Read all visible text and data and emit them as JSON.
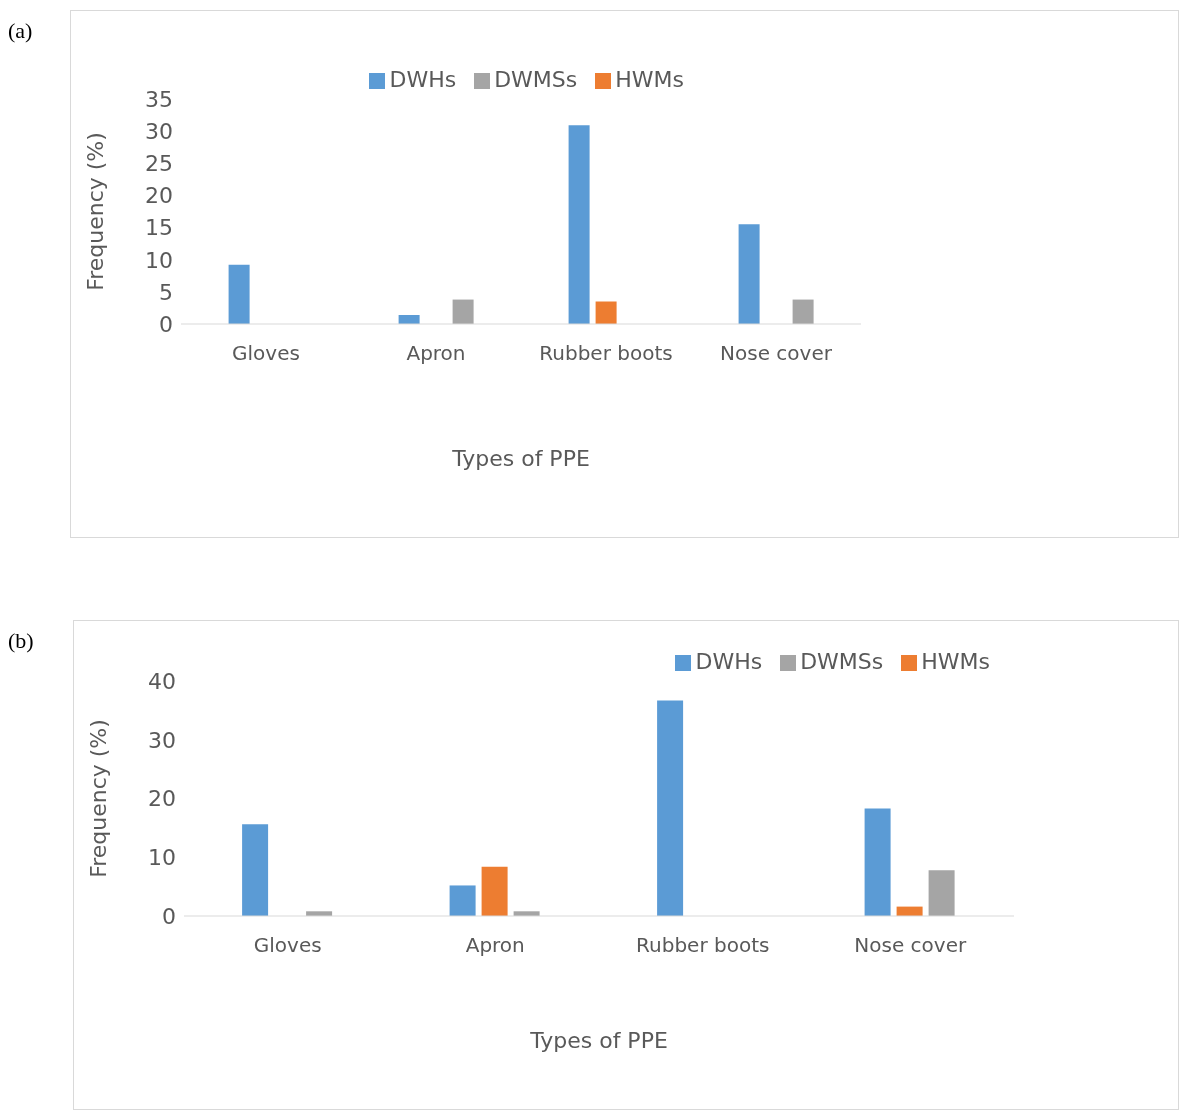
{
  "chart_data": [
    {
      "type": "bar",
      "annotations": [
        "(a)"
      ],
      "xlabel": "Types of PPE",
      "ylabel": "Frequency (%)",
      "categories": [
        "Gloves",
        "Apron",
        "Rubber boots",
        "Nose cover"
      ],
      "ylim": [
        0,
        35
      ],
      "yticks": [
        0,
        5,
        10,
        15,
        20,
        25,
        30,
        35
      ],
      "legend": "top right",
      "series": [
        {
          "name": "DWHs",
          "color": "#5b9bd5",
          "values": [
            9.2,
            1.4,
            30.9,
            15.5
          ]
        },
        {
          "name": "HWMs",
          "color": "#ed7d31",
          "values": [
            0,
            0,
            3.5,
            0
          ]
        },
        {
          "name": "DWMSs",
          "color": "#a5a5a5",
          "values": [
            0,
            3.8,
            0,
            3.8
          ]
        }
      ]
    },
    {
      "type": "bar",
      "annotations": [
        "(b)"
      ],
      "xlabel": "Types of PPE",
      "ylabel": "Frequency (%)",
      "categories": [
        "Gloves",
        "Apron",
        "Rubber boots",
        "Nose cover"
      ],
      "ylim": [
        0,
        40
      ],
      "yticks": [
        0,
        10,
        20,
        30,
        40
      ],
      "legend": "top right",
      "series": [
        {
          "name": "DWHs",
          "color": "#5b9bd5",
          "values": [
            15.6,
            5.2,
            36.7,
            18.3
          ]
        },
        {
          "name": "HWMs",
          "color": "#ed7d31",
          "values": [
            0,
            8.4,
            0,
            1.6
          ]
        },
        {
          "name": "DWMSs",
          "color": "#a5a5a5",
          "values": [
            0.8,
            0.8,
            0,
            7.8
          ]
        }
      ]
    }
  ]
}
